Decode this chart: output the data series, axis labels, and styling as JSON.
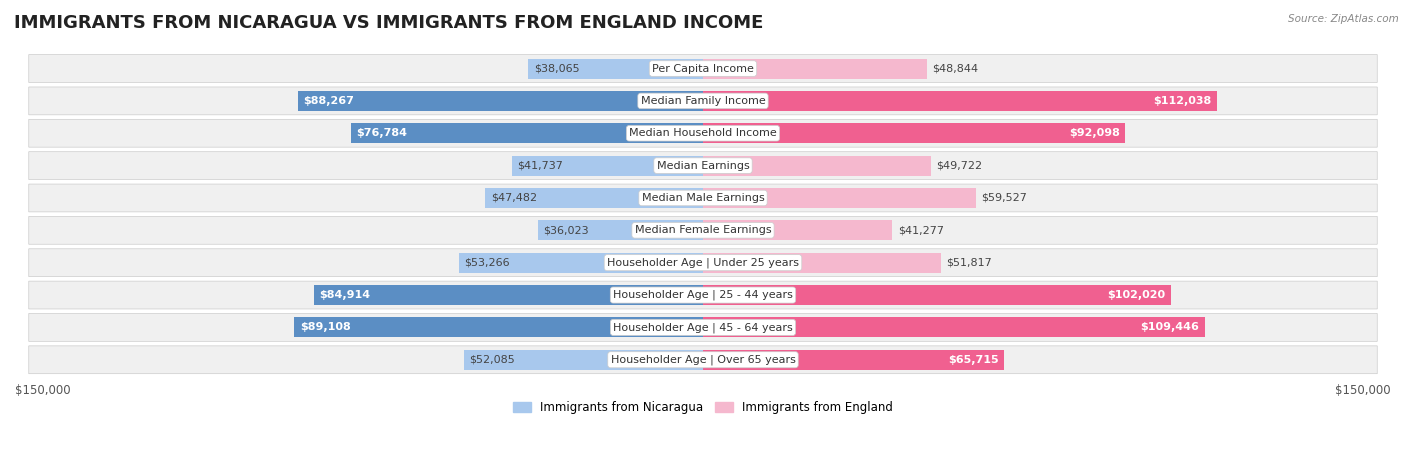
{
  "title": "IMMIGRANTS FROM NICARAGUA VS IMMIGRANTS FROM ENGLAND INCOME",
  "source": "Source: ZipAtlas.com",
  "categories": [
    "Per Capita Income",
    "Median Family Income",
    "Median Household Income",
    "Median Earnings",
    "Median Male Earnings",
    "Median Female Earnings",
    "Householder Age | Under 25 years",
    "Householder Age | 25 - 44 years",
    "Householder Age | 45 - 64 years",
    "Householder Age | Over 65 years"
  ],
  "nicaragua_values": [
    38065,
    88267,
    76784,
    41737,
    47482,
    36023,
    53266,
    84914,
    89108,
    52085
  ],
  "england_values": [
    48844,
    112038,
    92098,
    49722,
    59527,
    41277,
    51817,
    102020,
    109446,
    65715
  ],
  "nicaragua_labels": [
    "$38,065",
    "$88,267",
    "$76,784",
    "$41,737",
    "$47,482",
    "$36,023",
    "$53,266",
    "$84,914",
    "$89,108",
    "$52,085"
  ],
  "england_labels": [
    "$48,844",
    "$112,038",
    "$92,098",
    "$49,722",
    "$59,527",
    "$41,277",
    "$51,817",
    "$102,020",
    "$109,446",
    "$65,715"
  ],
  "nicaragua_color_light": "#a8c8ed",
  "nicaragua_color_dark": "#5b8ec4",
  "england_color_light": "#f5b8ce",
  "england_color_dark": "#f06090",
  "nicaragua_threshold": 60000,
  "england_threshold": 60000,
  "max_value": 150000,
  "x_label_left": "$150,000",
  "x_label_right": "$150,000",
  "legend_nicaragua": "Immigrants from Nicaragua",
  "legend_england": "Immigrants from England",
  "background_color": "#ffffff",
  "row_bg": "#f0f0f0",
  "title_fontsize": 13,
  "label_fontsize": 8,
  "category_fontsize": 8
}
